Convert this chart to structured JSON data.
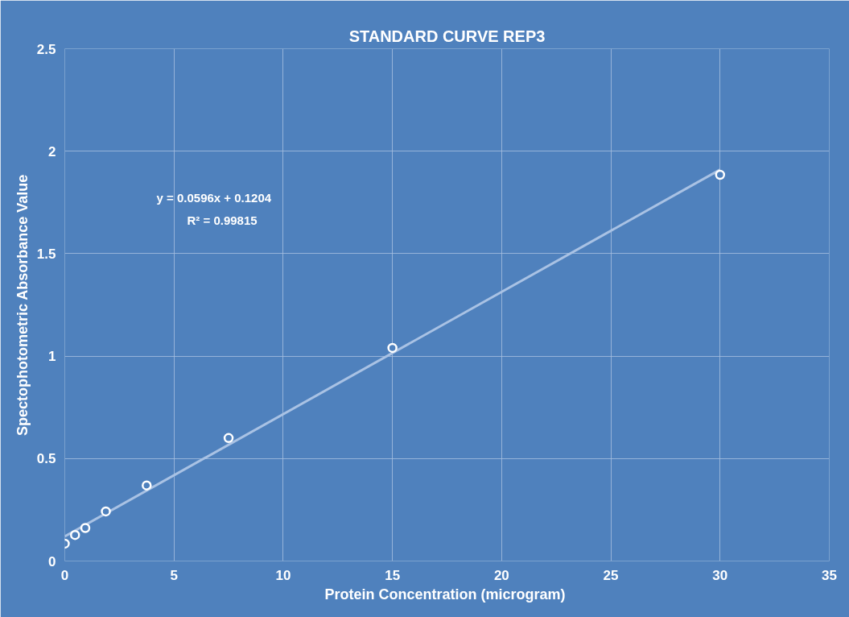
{
  "chart_data": {
    "type": "scatter",
    "title": "STANDARD CURVE REP3",
    "xlabel": "Protein  Concentration (microgram)",
    "ylabel": "Spectophotometric Absorbance Value",
    "series": [
      {
        "color": "#ffffff",
        "marker": "circle",
        "x": [
          0,
          0.47,
          0.94,
          1.88,
          3.75,
          7.5,
          15,
          30
        ],
        "values": [
          0.085,
          0.127,
          0.161,
          0.242,
          0.369,
          0.6,
          1.04,
          1.885
        ]
      },
      {
        "type": "line",
        "color": "#a9c2e4",
        "x": [
          0,
          30
        ],
        "values": [
          0.12,
          1.91
        ]
      }
    ],
    "annotations": [
      "y = 0.0596x + 0.1204",
      "R² = 0.99815"
    ],
    "xlim": [
      0,
      35
    ],
    "xticks": [
      0,
      5,
      10,
      15,
      20,
      25,
      30,
      35
    ],
    "ylim": [
      0,
      2.5
    ],
    "yticks": [
      0,
      0.5,
      1,
      1.5,
      2,
      2.5
    ],
    "grid": true
  }
}
